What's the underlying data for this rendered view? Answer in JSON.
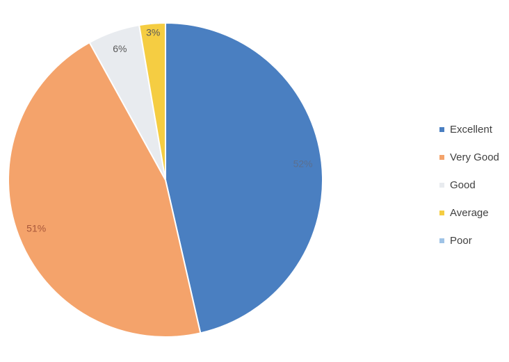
{
  "chart_data": {
    "type": "pie",
    "title": "",
    "categories": [
      "Excellent",
      "Very Good",
      "Good",
      "Average",
      "Poor"
    ],
    "values": [
      52,
      51,
      6,
      3,
      0
    ],
    "data_labels": [
      "52%",
      "51%",
      "6%",
      "3%",
      ""
    ],
    "colors": [
      "#4a7fc1",
      "#f4a36b",
      "#e8ebef",
      "#f5cd42",
      "#9fc3e6"
    ],
    "label_colors": [
      "#5b6f8f",
      "#a8573a",
      "#595959",
      "#595959",
      "#595959"
    ],
    "legend_position": "right",
    "start_angle_degrees_clockwise_from_top": 0,
    "direction": "clockwise"
  }
}
